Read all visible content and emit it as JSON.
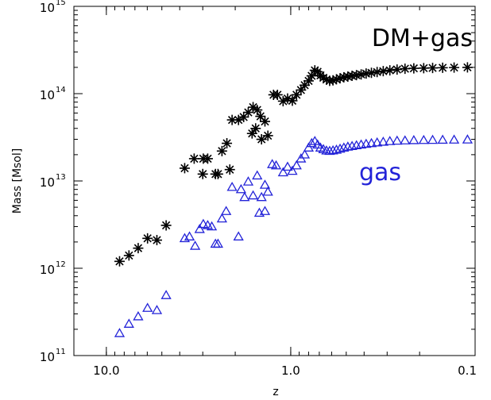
{
  "chart_data": {
    "type": "scatter",
    "title": "",
    "xlabel": "z",
    "ylabel": "Mass [Msol]",
    "x_scale": "log",
    "x_reversed": true,
    "xlim": [
      15.0,
      0.1
    ],
    "y_scale": "log",
    "ylim": [
      100000000000.0,
      1000000000000000.0
    ],
    "x_ticks": [
      {
        "value": 10.0,
        "label": "10.0"
      },
      {
        "value": 1.0,
        "label": "1.0"
      },
      {
        "value": 0.1,
        "label": "0.1"
      }
    ],
    "y_ticks": [
      {
        "value": 100000000000.0,
        "mantissa": "10",
        "exp": "11"
      },
      {
        "value": 1000000000000.0,
        "mantissa": "10",
        "exp": "12"
      },
      {
        "value": 10000000000000.0,
        "mantissa": "10",
        "exp": "13"
      },
      {
        "value": 100000000000000.0,
        "mantissa": "10",
        "exp": "14"
      },
      {
        "value": 1000000000000000.0,
        "mantissa": "10",
        "exp": "15"
      }
    ],
    "annotations": [
      {
        "text": "DM+gas",
        "color": "#000000"
      },
      {
        "text": "gas",
        "color": "#2323d8"
      }
    ],
    "series": [
      {
        "name": "DM+gas",
        "marker": "asterisk",
        "color": "#000000",
        "points": [
          [
            8.48,
            1200000000000.0
          ],
          [
            7.54,
            1400000000000.0
          ],
          [
            6.72,
            1700000000000.0
          ],
          [
            5.98,
            2200000000000.0
          ],
          [
            5.32,
            2100000000000.0
          ],
          [
            4.74,
            3100000000000.0
          ],
          [
            3.76,
            14000000000000.0
          ],
          [
            3.34,
            18000000000000.0
          ],
          [
            2.98,
            18000000000000.0
          ],
          [
            2.82,
            18000000000000.0
          ],
          [
            3.0,
            12000000000000.0
          ],
          [
            2.56,
            12000000000000.0
          ],
          [
            2.48,
            12000000000000.0
          ],
          [
            2.36,
            22000000000000.0
          ],
          [
            2.22,
            27000000000000.0
          ],
          [
            2.08,
            50000000000000.0
          ],
          [
            1.92,
            50000000000000.0
          ],
          [
            1.8,
            54000000000000.0
          ],
          [
            1.7,
            61000000000000.0
          ],
          [
            1.6,
            70000000000000.0
          ],
          [
            1.52,
            65000000000000.0
          ],
          [
            1.46,
            55000000000000.0
          ],
          [
            1.38,
            48000000000000.0
          ],
          [
            1.55,
            40000000000000.0
          ],
          [
            1.62,
            35000000000000.0
          ],
          [
            1.44,
            30000000000000.0
          ],
          [
            1.33,
            33000000000000.0
          ],
          [
            2.14,
            13500000000000.0
          ],
          [
            1.24,
            97000000000000.0
          ],
          [
            1.18,
            97000000000000.0
          ],
          [
            1.1,
            82000000000000.0
          ],
          [
            1.04,
            88000000000000.0
          ],
          [
            0.98,
            83000000000000.0
          ],
          [
            0.93,
            97000000000000.0
          ],
          [
            0.88,
            110000000000000.0
          ],
          [
            0.84,
            125000000000000.0
          ],
          [
            0.8,
            140000000000000.0
          ],
          [
            0.77,
            160000000000000.0
          ],
          [
            0.74,
            185000000000000.0
          ],
          [
            0.715,
            178000000000000.0
          ],
          [
            0.69,
            162000000000000.0
          ],
          [
            0.665,
            152000000000000.0
          ],
          [
            0.64,
            145000000000000.0
          ],
          [
            0.615,
            140000000000000.0
          ],
          [
            0.59,
            142000000000000.0
          ],
          [
            0.565,
            146000000000000.0
          ],
          [
            0.54,
            150000000000000.0
          ],
          [
            0.515,
            154000000000000.0
          ],
          [
            0.49,
            157000000000000.0
          ],
          [
            0.465,
            160000000000000.0
          ],
          [
            0.44,
            163000000000000.0
          ],
          [
            0.415,
            166000000000000.0
          ],
          [
            0.39,
            170000000000000.0
          ],
          [
            0.365,
            173000000000000.0
          ],
          [
            0.34,
            177000000000000.0
          ],
          [
            0.315,
            181000000000000.0
          ],
          [
            0.29,
            185000000000000.0
          ],
          [
            0.265,
            189000000000000.0
          ],
          [
            0.24,
            193000000000000.0
          ],
          [
            0.215,
            195000000000000.0
          ],
          [
            0.19,
            196000000000000.0
          ],
          [
            0.17,
            197000000000000.0
          ],
          [
            0.15,
            198000000000000.0
          ],
          [
            0.13,
            199000000000000.0
          ],
          [
            0.11,
            200000000000000.0
          ]
        ]
      },
      {
        "name": "gas",
        "marker": "triangle",
        "color": "#2323d8",
        "points": [
          [
            8.48,
            180000000000.0
          ],
          [
            7.54,
            230000000000.0
          ],
          [
            6.72,
            280000000000.0
          ],
          [
            5.98,
            350000000000.0
          ],
          [
            5.32,
            330000000000.0
          ],
          [
            4.74,
            490000000000.0
          ],
          [
            3.76,
            2200000000000.0
          ],
          [
            3.54,
            2300000000000.0
          ],
          [
            3.3,
            1800000000000.0
          ],
          [
            3.12,
            2800000000000.0
          ],
          [
            2.98,
            3200000000000.0
          ],
          [
            2.82,
            3100000000000.0
          ],
          [
            2.68,
            3000000000000.0
          ],
          [
            2.56,
            1900000000000.0
          ],
          [
            2.48,
            1900000000000.0
          ],
          [
            2.36,
            3700000000000.0
          ],
          [
            2.24,
            4500000000000.0
          ],
          [
            2.08,
            8500000000000.0
          ],
          [
            1.92,
            2300000000000.0
          ],
          [
            1.86,
            8000000000000.0
          ],
          [
            1.78,
            6500000000000.0
          ],
          [
            1.7,
            9800000000000.0
          ],
          [
            1.6,
            6800000000000.0
          ],
          [
            1.52,
            11500000000000.0
          ],
          [
            1.44,
            6500000000000.0
          ],
          [
            1.38,
            9000000000000.0
          ],
          [
            1.48,
            4300000000000.0
          ],
          [
            1.38,
            4500000000000.0
          ],
          [
            1.33,
            7500000000000.0
          ],
          [
            1.26,
            15500000000000.0
          ],
          [
            1.2,
            15000000000000.0
          ],
          [
            1.1,
            12500000000000.0
          ],
          [
            1.04,
            14500000000000.0
          ],
          [
            0.98,
            13000000000000.0
          ],
          [
            0.93,
            15000000000000.0
          ],
          [
            0.88,
            18000000000000.0
          ],
          [
            0.84,
            20000000000000.0
          ],
          [
            0.8,
            24000000000000.0
          ],
          [
            0.77,
            27000000000000.0
          ],
          [
            0.74,
            28500000000000.0
          ],
          [
            0.715,
            26000000000000.0
          ],
          [
            0.69,
            24000000000000.0
          ],
          [
            0.665,
            23000000000000.0
          ],
          [
            0.64,
            22200000000000.0
          ],
          [
            0.615,
            22000000000000.0
          ],
          [
            0.59,
            22300000000000.0
          ],
          [
            0.565,
            22700000000000.0
          ],
          [
            0.54,
            23300000000000.0
          ],
          [
            0.515,
            24000000000000.0
          ],
          [
            0.49,
            24600000000000.0
          ],
          [
            0.465,
            25000000000000.0
          ],
          [
            0.44,
            25500000000000.0
          ],
          [
            0.415,
            26000000000000.0
          ],
          [
            0.39,
            26500000000000.0
          ],
          [
            0.365,
            27000000000000.0
          ],
          [
            0.34,
            27500000000000.0
          ],
          [
            0.315,
            28000000000000.0
          ],
          [
            0.29,
            28500000000000.0
          ],
          [
            0.265,
            28800000000000.0
          ],
          [
            0.24,
            29000000000000.0
          ],
          [
            0.215,
            29200000000000.0
          ],
          [
            0.19,
            29300000000000.0
          ],
          [
            0.17,
            29400000000000.0
          ],
          [
            0.15,
            29500000000000.0
          ],
          [
            0.13,
            29600000000000.0
          ],
          [
            0.11,
            29700000000000.0
          ]
        ]
      }
    ]
  }
}
